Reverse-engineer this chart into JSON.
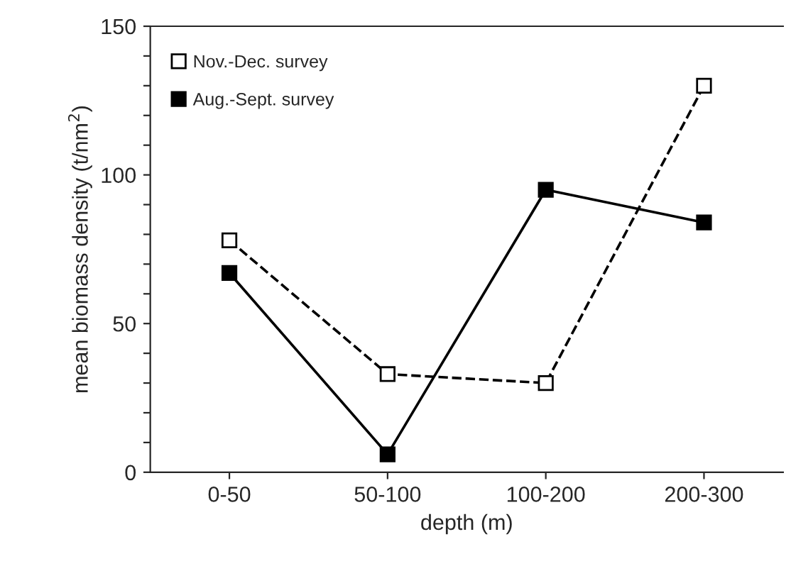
{
  "chart_data": {
    "type": "line",
    "xlabel": "depth (m)",
    "ylabel": "mean biomass density (t/nm$^{2}$)",
    "categories": [
      "0-50",
      "50-100",
      "100-200",
      "200-300"
    ],
    "series": [
      {
        "name": "Nov.-Dec. survey",
        "color": "#000000",
        "values": [
          78,
          33,
          30,
          130
        ],
        "marker": "square",
        "line_style": "dashed"
      },
      {
        "name": "Aug.-Sept. survey",
        "color": "#000000",
        "values": [
          67,
          6,
          95,
          84
        ],
        "marker": "square",
        "line_style": "solid"
      }
    ],
    "ylim": [
      0,
      150
    ],
    "yticks": [
      0,
      {
        "value": 10,
        "label": null
      },
      {
        "value": 20,
        "label": null
      },
      {
        "value": 30,
        "label": null
      },
      {
        "value": 40,
        "label": null
      },
      50,
      {
        "value": 60,
        "label": null
      },
      {
        "value": 70,
        "label": null
      },
      {
        "value": 80,
        "label": null
      },
      {
        "value": 90,
        "label": null
      },
      100,
      {
        "value": 110,
        "label": null
      },
      {
        "value": 120,
        "label": null
      },
      {
        "value": 130,
        "label": null
      },
      {
        "value": 140,
        "label": null
      },
      150
    ],
    "grid": false,
    "legend": "top left"
  }
}
